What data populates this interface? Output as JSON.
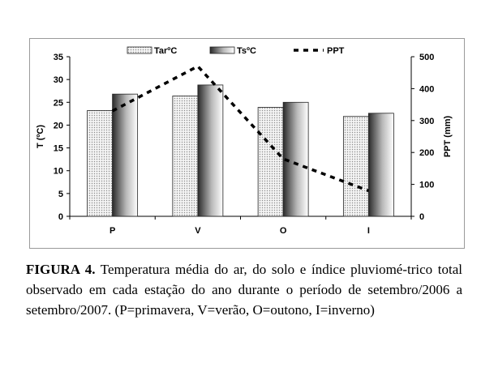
{
  "chart_data": {
    "type": "bar",
    "categories": [
      "P",
      "V",
      "O",
      "I"
    ],
    "series": [
      {
        "name": "TarºC",
        "type": "bar",
        "axis": "left",
        "values": [
          23.2,
          26.4,
          23.9,
          21.9
        ]
      },
      {
        "name": "TsºC",
        "type": "bar",
        "axis": "left",
        "values": [
          26.8,
          28.8,
          25.0,
          22.6
        ]
      },
      {
        "name": "PPT",
        "type": "line",
        "axis": "right",
        "values": [
          330,
          470,
          180,
          80
        ]
      }
    ],
    "ylabel": "T (ºC)",
    "ylabel_right": "PPT (mm)",
    "ylim": [
      0,
      35
    ],
    "ylim_right": [
      0,
      500
    ],
    "yticks": [
      "0",
      "5",
      "10",
      "15",
      "20",
      "25",
      "30",
      "35"
    ],
    "yticks_right": [
      "0",
      "100",
      "200",
      "300",
      "400",
      "500"
    ],
    "legend_position": "top",
    "grid": false
  },
  "caption": {
    "label": "FIGURA 4.",
    "text": " Temperatura média do ar, do solo e índice pluviomé-trico total observado em cada estação do ano durante o período de setembro/2006 a setembro/2007. (P=primavera, V=verão, O=outono, I=inverno)"
  }
}
